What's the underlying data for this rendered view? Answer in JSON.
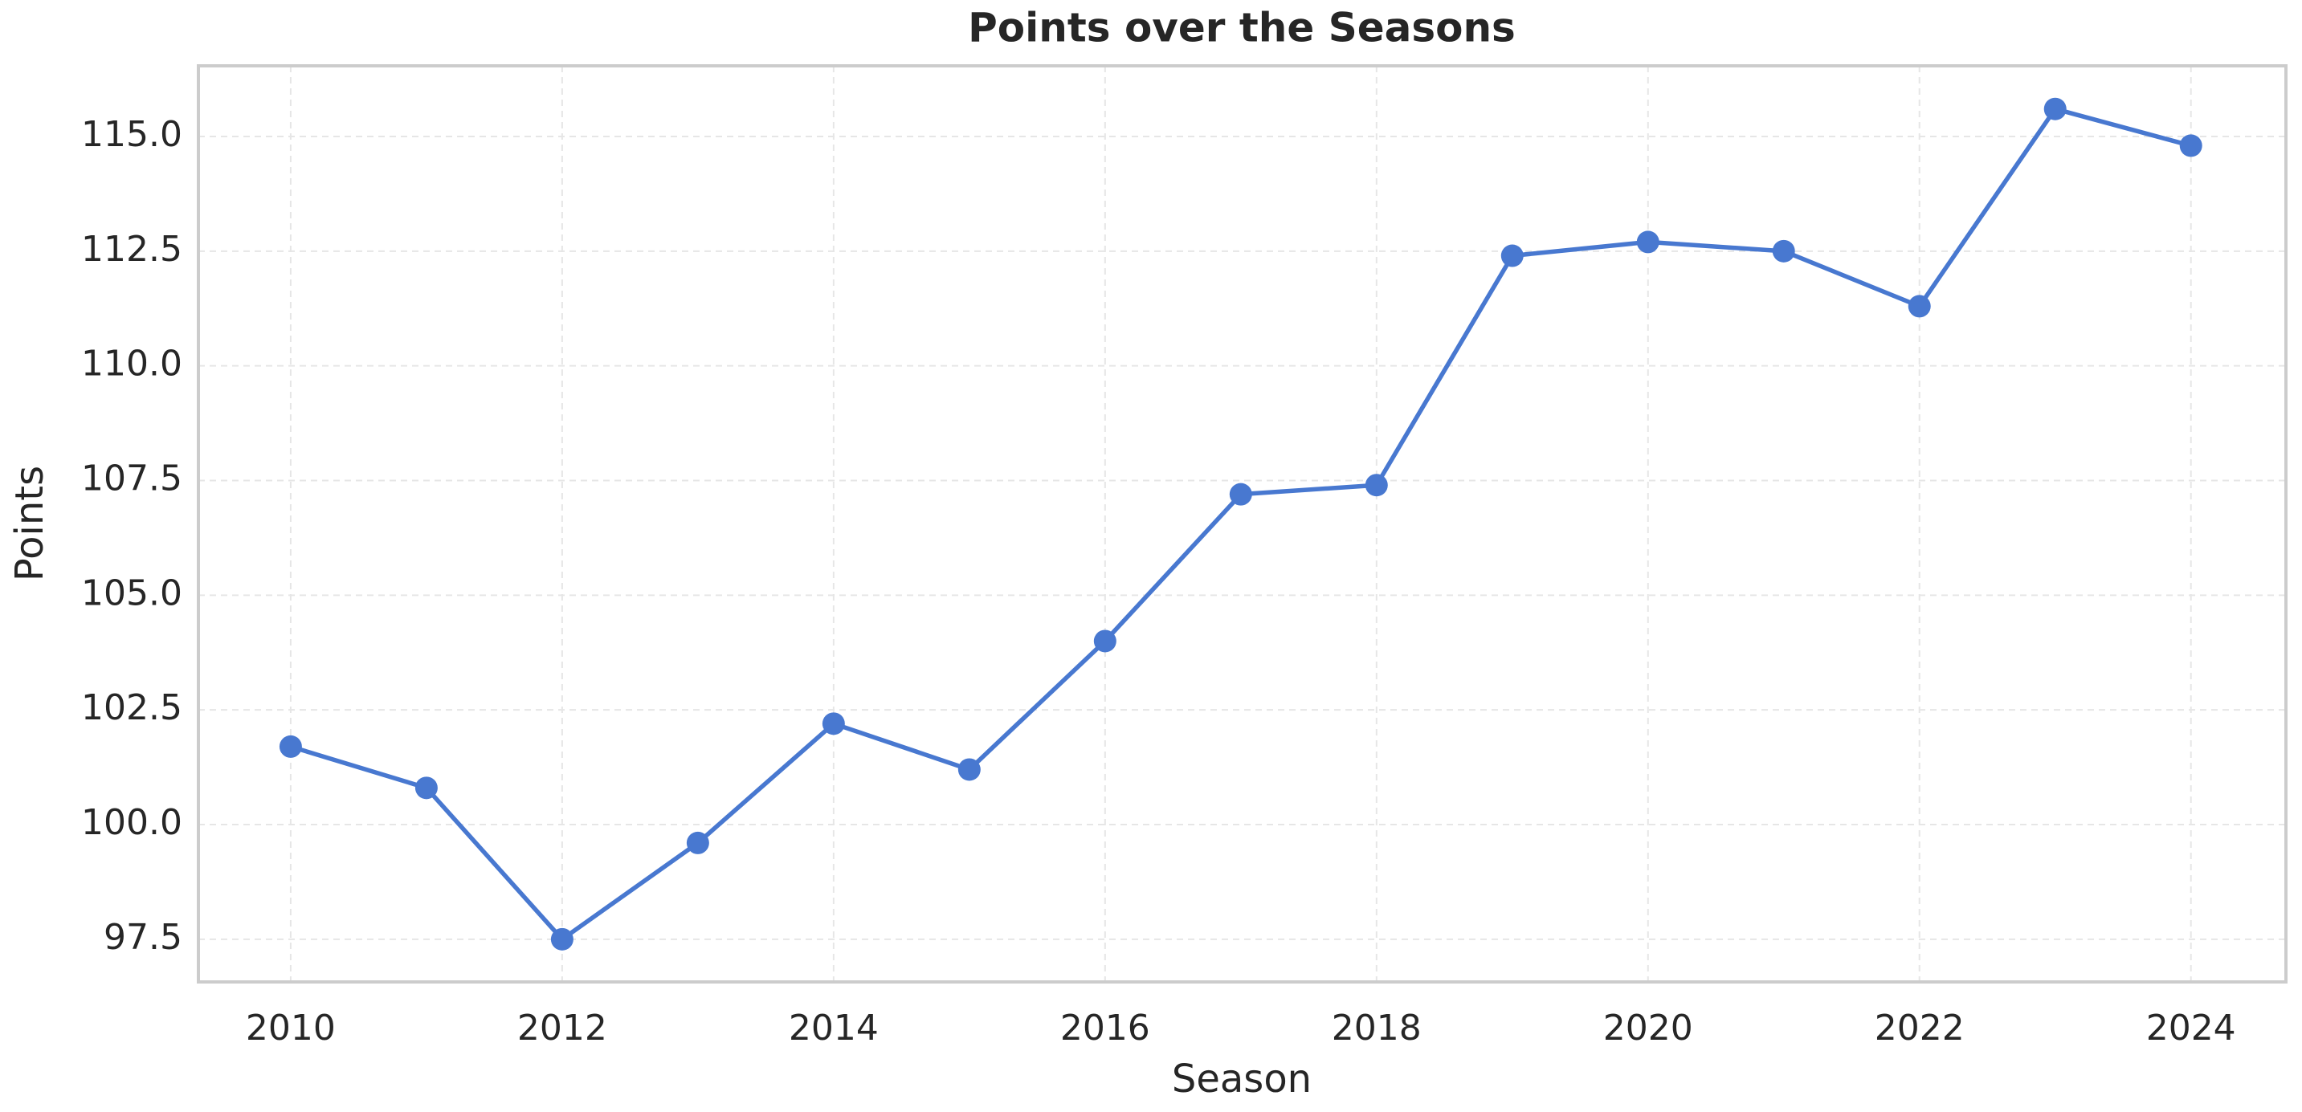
{
  "chart_data": {
    "type": "line",
    "title": "Points over the Seasons",
    "xlabel": "Season",
    "ylabel": "Points",
    "x": [
      2010,
      2011,
      2012,
      2013,
      2014,
      2015,
      2016,
      2017,
      2018,
      2019,
      2020,
      2021,
      2022,
      2023,
      2024
    ],
    "series": [
      {
        "name": "Points",
        "color": "#4878d0",
        "values": [
          101.7,
          100.8,
          97.5,
          99.6,
          102.2,
          101.2,
          104.0,
          107.2,
          107.4,
          112.4,
          112.7,
          112.5,
          111.3,
          115.6,
          114.8
        ]
      }
    ],
    "xlim": [
      2009.32,
      2024.7
    ],
    "ylim": [
      96.57,
      116.54
    ],
    "xticks": [
      2010,
      2012,
      2014,
      2016,
      2018,
      2020,
      2022,
      2024
    ],
    "yticks": [
      97.5,
      {
        "value": 100,
        "label": "100.0"
      },
      102.5,
      {
        "value": 105,
        "label": "105.0"
      },
      107.5,
      {
        "value": 110,
        "label": "110.0"
      },
      112.5,
      {
        "value": 115,
        "label": "115.0"
      }
    ],
    "grid": true,
    "markers": true
  }
}
